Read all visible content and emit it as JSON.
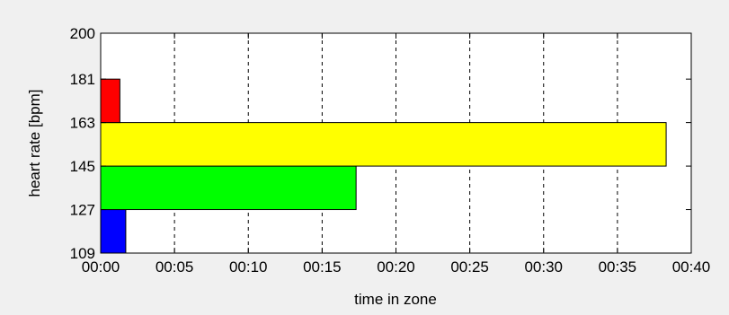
{
  "chart_data": {
    "type": "bar",
    "orientation": "horizontal",
    "xlabel": "time in zone",
    "ylabel": "heart rate [bpm]",
    "x_unit": "minutes",
    "xlim": [
      0,
      40
    ],
    "x_ticks": [
      0,
      5,
      10,
      15,
      20,
      25,
      30,
      35,
      40
    ],
    "x_tick_labels": [
      "00:00",
      "00:05",
      "00:10",
      "00:15",
      "00:20",
      "00:25",
      "00:30",
      "00:35",
      "00:40"
    ],
    "ylim": [
      109,
      200
    ],
    "y_ticks": [
      109,
      127,
      145,
      163,
      181,
      200
    ],
    "y_tick_labels": [
      "109",
      "127",
      "145",
      "163",
      "181",
      "200"
    ],
    "grid": "vertical dashed",
    "legend": "none",
    "bars": [
      {
        "zone": "109-127",
        "y_from": 109,
        "y_to": 127,
        "duration": 1.7,
        "color": "#0000ff"
      },
      {
        "zone": "127-145",
        "y_from": 127,
        "y_to": 145,
        "duration": 17.3,
        "color": "#00ff00"
      },
      {
        "zone": "145-163",
        "y_from": 145,
        "y_to": 163,
        "duration": 38.3,
        "color": "#ffff00"
      },
      {
        "zone": "163-181",
        "y_from": 163,
        "y_to": 181,
        "duration": 1.3,
        "color": "#ff0000"
      }
    ]
  }
}
